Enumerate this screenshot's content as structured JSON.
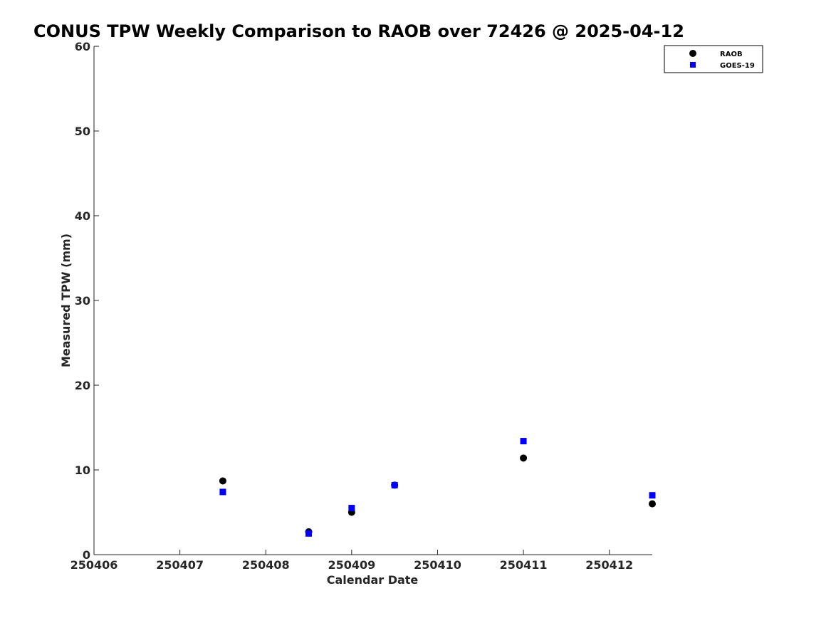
{
  "chart_data": {
    "type": "scatter",
    "title": "CONUS TPW Weekly Comparison to RAOB over 72426 @ 2025-04-12",
    "xlabel": "Calendar Date",
    "ylabel": "Measured TPW (mm)",
    "xlim": [
      250406,
      250412.5
    ],
    "ylim": [
      0,
      60
    ],
    "x_ticks": [
      250406,
      250407,
      250408,
      250409,
      250410,
      250411,
      250412
    ],
    "x_tick_labels": [
      "250406",
      "250407",
      "250408",
      "250409",
      "250410",
      "250411",
      "250412"
    ],
    "y_ticks": [
      0,
      10,
      20,
      30,
      40,
      50,
      60
    ],
    "y_tick_labels": [
      "0",
      "10",
      "20",
      "30",
      "40",
      "50",
      "60"
    ],
    "grid": false,
    "legend_position": "top-right",
    "series": [
      {
        "name": "RAOB",
        "marker": "circle",
        "color": "#000000",
        "x": [
          250407.5,
          250408.5,
          250409,
          250409.5,
          250411,
          250412.5
        ],
        "y": [
          8.7,
          2.7,
          5.0,
          8.2,
          11.4,
          6.0
        ]
      },
      {
        "name": "GOES-19",
        "marker": "square",
        "color": "#0000ff",
        "x": [
          250407.5,
          250408.5,
          250409,
          250409.5,
          250411,
          250412.5
        ],
        "y": [
          7.4,
          2.5,
          5.5,
          8.2,
          13.4,
          7.0
        ]
      }
    ]
  }
}
